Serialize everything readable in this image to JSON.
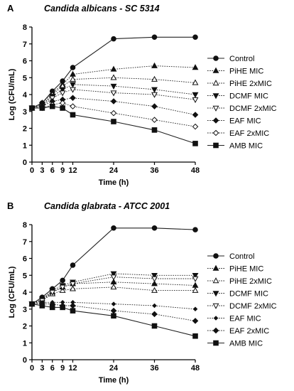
{
  "chart_data": [
    {
      "type": "line",
      "panel": "A",
      "title": "Candida albicans - SC 5314",
      "xlabel": "Time (h)",
      "ylabel": "Log (CFU/mL)",
      "xlim": [
        0,
        48
      ],
      "ylim": [
        0,
        8
      ],
      "xticks": [
        0,
        3,
        6,
        9,
        12,
        24,
        36,
        48
      ],
      "yticks": [
        0,
        1,
        2,
        3,
        4,
        5,
        6,
        7,
        8
      ],
      "grid": false,
      "legend": "right",
      "x": [
        0,
        3,
        6,
        9,
        12,
        24,
        36,
        48
      ],
      "series": [
        {
          "name": "Control",
          "marker": "circle-filled",
          "dash": "solid",
          "values": [
            3.2,
            3.5,
            4.2,
            4.8,
            5.6,
            7.3,
            7.4,
            7.4
          ]
        },
        {
          "name": "PiHE MIC",
          "marker": "triangle-up-filled",
          "dash": "dotted",
          "values": [
            3.2,
            3.5,
            4.1,
            4.6,
            5.2,
            5.5,
            5.7,
            5.6
          ]
        },
        {
          "name": "PiHE 2xMIC",
          "marker": "triangle-up-open",
          "dash": "dotted",
          "values": [
            3.2,
            3.4,
            4.0,
            4.5,
            4.9,
            5.0,
            4.9,
            4.7
          ]
        },
        {
          "name": "DCMF MIC",
          "marker": "triangle-down-filled",
          "dash": "dotted",
          "values": [
            3.2,
            3.4,
            3.9,
            4.3,
            4.6,
            4.5,
            4.3,
            4.0
          ]
        },
        {
          "name": "DCMF 2xMIC",
          "marker": "triangle-down-open",
          "dash": "dotted",
          "values": [
            3.2,
            3.3,
            3.8,
            4.1,
            4.3,
            4.1,
            4.0,
            3.7
          ]
        },
        {
          "name": "EAF MIC",
          "marker": "diamond-filled",
          "dash": "dotted",
          "values": [
            3.2,
            3.3,
            3.6,
            3.7,
            3.8,
            3.6,
            3.3,
            2.8
          ]
        },
        {
          "name": "EAF 2xMIC",
          "marker": "diamond-open",
          "dash": "dotted",
          "values": [
            3.2,
            3.2,
            3.4,
            3.5,
            3.3,
            2.9,
            2.5,
            2.1
          ]
        },
        {
          "name": "AMB MIC",
          "marker": "square-filled",
          "dash": "solid",
          "values": [
            3.2,
            3.2,
            3.3,
            3.2,
            2.8,
            2.4,
            1.9,
            1.1
          ]
        }
      ]
    },
    {
      "type": "line",
      "panel": "B",
      "title": "Candida glabrata - ATCC 2001",
      "xlabel": "Time (h)",
      "ylabel": "Log (CFU/mL)",
      "xlim": [
        0,
        48
      ],
      "ylim": [
        0,
        8
      ],
      "xticks": [
        0,
        3,
        6,
        9,
        12,
        24,
        36,
        48
      ],
      "yticks": [
        0,
        1,
        2,
        3,
        4,
        5,
        6,
        7,
        8
      ],
      "grid": false,
      "legend": "right",
      "x": [
        0,
        3,
        6,
        9,
        12,
        24,
        36,
        48
      ],
      "series": [
        {
          "name": "Control",
          "marker": "circle-filled",
          "dash": "solid",
          "values": [
            3.3,
            3.7,
            4.2,
            4.7,
            5.6,
            7.8,
            7.8,
            7.7
          ]
        },
        {
          "name": "PiHE MIC",
          "marker": "triangle-up-filled",
          "dash": "dotted",
          "values": [
            3.3,
            3.6,
            4.0,
            4.3,
            4.5,
            4.6,
            4.5,
            4.4
          ]
        },
        {
          "name": "PiHE 2xMIC",
          "marker": "triangle-up-open",
          "dash": "dotted",
          "values": [
            3.3,
            3.5,
            3.9,
            4.1,
            4.2,
            4.3,
            4.1,
            4.1
          ]
        },
        {
          "name": "DCMF MIC",
          "marker": "triangle-down-filled",
          "dash": "dotted",
          "values": [
            3.3,
            3.6,
            4.1,
            4.4,
            4.6,
            5.1,
            5.0,
            5.0
          ]
        },
        {
          "name": "DCMF 2xMIC",
          "marker": "triangle-down-open",
          "dash": "dotted",
          "values": [
            3.3,
            3.5,
            4.0,
            4.3,
            4.5,
            4.9,
            4.8,
            4.8
          ]
        },
        {
          "name": "EAF MIC",
          "marker": "diamond-filled-small",
          "dash": "dotted",
          "values": [
            3.3,
            3.4,
            3.4,
            3.4,
            3.4,
            3.3,
            3.2,
            3.0
          ]
        },
        {
          "name": "EAF 2xMIC",
          "marker": "diamond-filled",
          "dash": "dotted",
          "values": [
            3.3,
            3.3,
            3.3,
            3.2,
            3.2,
            2.9,
            2.7,
            2.3
          ]
        },
        {
          "name": "AMB MIC",
          "marker": "square-filled",
          "dash": "solid",
          "values": [
            3.3,
            3.2,
            3.1,
            3.1,
            2.9,
            2.6,
            2.0,
            1.4
          ]
        }
      ]
    }
  ]
}
